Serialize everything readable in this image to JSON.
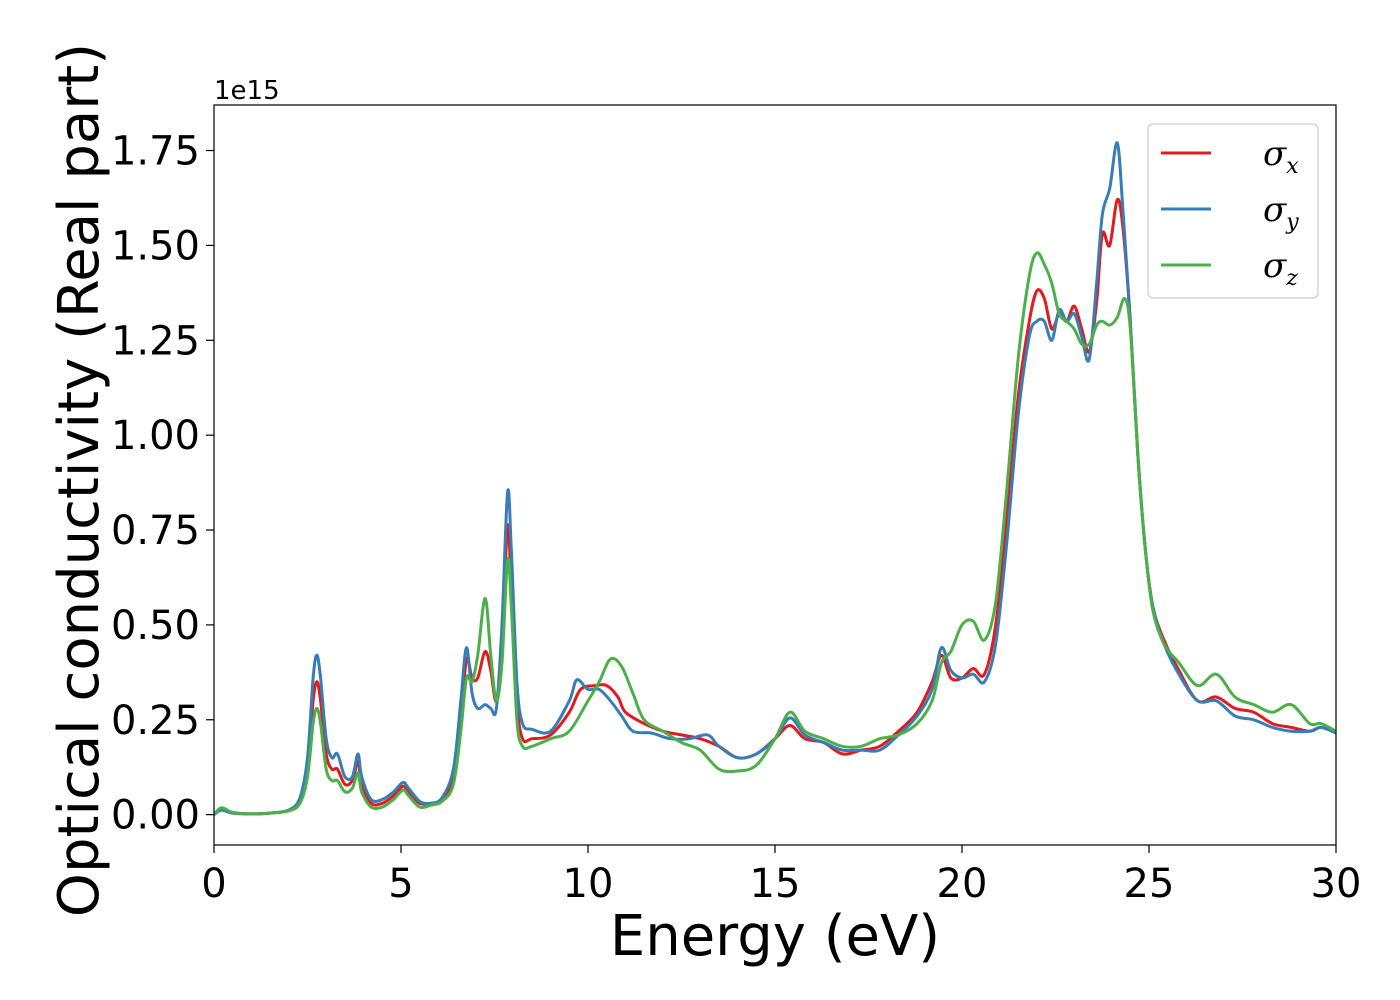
{
  "chart_data": {
    "type": "line",
    "xlabel": "Energy (eV)",
    "ylabel": "Optical conductivity (Real part)",
    "y_offset_label": "1e15",
    "xlim": [
      0,
      30
    ],
    "ylim": [
      -0.08,
      1.87
    ],
    "xticks": [
      0,
      5,
      10,
      15,
      20,
      25,
      30
    ],
    "xtick_labels": [
      "0",
      "5",
      "10",
      "15",
      "20",
      "25",
      "30"
    ],
    "yticks": [
      0,
      0.25,
      0.5,
      0.75,
      1.0,
      1.25,
      1.5,
      1.75
    ],
    "ytick_labels": [
      "0.00",
      "0.25",
      "0.50",
      "0.75",
      "1.00",
      "1.25",
      "1.50",
      "1.75"
    ],
    "grid": false,
    "legend_position": "top-right",
    "series": [
      {
        "name": "σx",
        "legend_base": "σ",
        "legend_sub": "x",
        "color": "#e41a1c",
        "points": [
          [
            0,
            0
          ],
          [
            0.2,
            0.015
          ],
          [
            0.5,
            0.005
          ],
          [
            1,
            0.002
          ],
          [
            1.5,
            0.004
          ],
          [
            2,
            0.012
          ],
          [
            2.3,
            0.04
          ],
          [
            2.5,
            0.12
          ],
          [
            2.65,
            0.3
          ],
          [
            2.75,
            0.35
          ],
          [
            2.85,
            0.3
          ],
          [
            3.0,
            0.16
          ],
          [
            3.15,
            0.12
          ],
          [
            3.3,
            0.12
          ],
          [
            3.5,
            0.08
          ],
          [
            3.7,
            0.09
          ],
          [
            3.85,
            0.14
          ],
          [
            3.95,
            0.08
          ],
          [
            4.2,
            0.03
          ],
          [
            4.5,
            0.03
          ],
          [
            4.8,
            0.05
          ],
          [
            5.05,
            0.075
          ],
          [
            5.2,
            0.06
          ],
          [
            5.5,
            0.03
          ],
          [
            5.8,
            0.03
          ],
          [
            6.1,
            0.04
          ],
          [
            6.4,
            0.1
          ],
          [
            6.6,
            0.25
          ],
          [
            6.75,
            0.41
          ],
          [
            6.9,
            0.36
          ],
          [
            7.05,
            0.36
          ],
          [
            7.25,
            0.43
          ],
          [
            7.4,
            0.38
          ],
          [
            7.55,
            0.3
          ],
          [
            7.7,
            0.45
          ],
          [
            7.85,
            0.76
          ],
          [
            7.95,
            0.6
          ],
          [
            8.1,
            0.3
          ],
          [
            8.25,
            0.2
          ],
          [
            8.5,
            0.2
          ],
          [
            9.0,
            0.21
          ],
          [
            9.5,
            0.27
          ],
          [
            9.8,
            0.33
          ],
          [
            10.2,
            0.34
          ],
          [
            10.5,
            0.34
          ],
          [
            10.8,
            0.31
          ],
          [
            11.0,
            0.27
          ],
          [
            11.5,
            0.24
          ],
          [
            12.0,
            0.22
          ],
          [
            12.5,
            0.21
          ],
          [
            13.0,
            0.2
          ],
          [
            13.5,
            0.18
          ],
          [
            14.0,
            0.15
          ],
          [
            14.5,
            0.16
          ],
          [
            15.0,
            0.2
          ],
          [
            15.4,
            0.235
          ],
          [
            15.8,
            0.2
          ],
          [
            16.3,
            0.19
          ],
          [
            16.8,
            0.16
          ],
          [
            17.3,
            0.17
          ],
          [
            17.8,
            0.18
          ],
          [
            18.3,
            0.22
          ],
          [
            18.8,
            0.27
          ],
          [
            19.2,
            0.35
          ],
          [
            19.45,
            0.42
          ],
          [
            19.7,
            0.36
          ],
          [
            20.0,
            0.36
          ],
          [
            20.3,
            0.385
          ],
          [
            20.6,
            0.37
          ],
          [
            20.9,
            0.5
          ],
          [
            21.2,
            0.78
          ],
          [
            21.5,
            1.1
          ],
          [
            21.8,
            1.3
          ],
          [
            22.0,
            1.38
          ],
          [
            22.2,
            1.36
          ],
          [
            22.4,
            1.28
          ],
          [
            22.6,
            1.32
          ],
          [
            22.8,
            1.3
          ],
          [
            23.0,
            1.34
          ],
          [
            23.2,
            1.28
          ],
          [
            23.4,
            1.22
          ],
          [
            23.6,
            1.35
          ],
          [
            23.75,
            1.53
          ],
          [
            23.95,
            1.5
          ],
          [
            24.15,
            1.62
          ],
          [
            24.3,
            1.55
          ],
          [
            24.5,
            1.3
          ],
          [
            24.7,
            0.95
          ],
          [
            24.9,
            0.7
          ],
          [
            25.1,
            0.55
          ],
          [
            25.4,
            0.46
          ],
          [
            25.8,
            0.38
          ],
          [
            26.3,
            0.3
          ],
          [
            26.8,
            0.31
          ],
          [
            27.3,
            0.28
          ],
          [
            27.8,
            0.27
          ],
          [
            28.3,
            0.24
          ],
          [
            28.8,
            0.23
          ],
          [
            29.3,
            0.22
          ],
          [
            29.6,
            0.23
          ],
          [
            30,
            0.22
          ]
        ]
      },
      {
        "name": "σy",
        "legend_base": "σ",
        "legend_sub": "y",
        "color": "#377eb8",
        "points": [
          [
            0,
            0
          ],
          [
            0.2,
            0.012
          ],
          [
            0.5,
            0.004
          ],
          [
            1,
            0.002
          ],
          [
            1.5,
            0.004
          ],
          [
            2,
            0.012
          ],
          [
            2.3,
            0.045
          ],
          [
            2.5,
            0.15
          ],
          [
            2.65,
            0.36
          ],
          [
            2.75,
            0.42
          ],
          [
            2.85,
            0.36
          ],
          [
            3.0,
            0.2
          ],
          [
            3.15,
            0.15
          ],
          [
            3.3,
            0.16
          ],
          [
            3.5,
            0.1
          ],
          [
            3.7,
            0.1
          ],
          [
            3.85,
            0.16
          ],
          [
            3.95,
            0.1
          ],
          [
            4.2,
            0.04
          ],
          [
            4.5,
            0.04
          ],
          [
            4.8,
            0.06
          ],
          [
            5.05,
            0.085
          ],
          [
            5.2,
            0.07
          ],
          [
            5.5,
            0.035
          ],
          [
            5.8,
            0.03
          ],
          [
            6.1,
            0.045
          ],
          [
            6.4,
            0.12
          ],
          [
            6.6,
            0.3
          ],
          [
            6.75,
            0.44
          ],
          [
            6.9,
            0.32
          ],
          [
            7.05,
            0.28
          ],
          [
            7.25,
            0.29
          ],
          [
            7.4,
            0.28
          ],
          [
            7.55,
            0.28
          ],
          [
            7.7,
            0.5
          ],
          [
            7.85,
            0.85
          ],
          [
            7.95,
            0.7
          ],
          [
            8.1,
            0.35
          ],
          [
            8.25,
            0.24
          ],
          [
            8.5,
            0.225
          ],
          [
            9.0,
            0.22
          ],
          [
            9.5,
            0.3
          ],
          [
            9.7,
            0.355
          ],
          [
            10.0,
            0.33
          ],
          [
            10.3,
            0.33
          ],
          [
            10.6,
            0.3
          ],
          [
            10.9,
            0.26
          ],
          [
            11.2,
            0.22
          ],
          [
            11.7,
            0.215
          ],
          [
            12.2,
            0.2
          ],
          [
            12.7,
            0.2
          ],
          [
            13.2,
            0.21
          ],
          [
            13.5,
            0.18
          ],
          [
            14.0,
            0.15
          ],
          [
            14.5,
            0.16
          ],
          [
            15.0,
            0.2
          ],
          [
            15.4,
            0.255
          ],
          [
            15.8,
            0.21
          ],
          [
            16.3,
            0.19
          ],
          [
            16.8,
            0.17
          ],
          [
            17.3,
            0.17
          ],
          [
            17.8,
            0.17
          ],
          [
            18.3,
            0.21
          ],
          [
            18.8,
            0.26
          ],
          [
            19.2,
            0.33
          ],
          [
            19.45,
            0.44
          ],
          [
            19.7,
            0.38
          ],
          [
            20.0,
            0.36
          ],
          [
            20.3,
            0.37
          ],
          [
            20.6,
            0.35
          ],
          [
            20.9,
            0.45
          ],
          [
            21.2,
            0.72
          ],
          [
            21.5,
            1.05
          ],
          [
            21.8,
            1.26
          ],
          [
            22.0,
            1.3
          ],
          [
            22.2,
            1.3
          ],
          [
            22.4,
            1.25
          ],
          [
            22.6,
            1.33
          ],
          [
            22.8,
            1.3
          ],
          [
            23.0,
            1.32
          ],
          [
            23.2,
            1.26
          ],
          [
            23.4,
            1.2
          ],
          [
            23.6,
            1.4
          ],
          [
            23.75,
            1.58
          ],
          [
            23.95,
            1.65
          ],
          [
            24.15,
            1.77
          ],
          [
            24.3,
            1.6
          ],
          [
            24.5,
            1.3
          ],
          [
            24.7,
            0.95
          ],
          [
            24.9,
            0.7
          ],
          [
            25.1,
            0.55
          ],
          [
            25.4,
            0.45
          ],
          [
            25.8,
            0.37
          ],
          [
            26.3,
            0.3
          ],
          [
            26.8,
            0.3
          ],
          [
            27.3,
            0.26
          ],
          [
            27.8,
            0.25
          ],
          [
            28.3,
            0.23
          ],
          [
            28.8,
            0.22
          ],
          [
            29.3,
            0.22
          ],
          [
            29.6,
            0.23
          ],
          [
            30,
            0.215
          ]
        ]
      },
      {
        "name": "σz",
        "legend_base": "σ",
        "legend_sub": "z",
        "color": "#4daf4a",
        "points": [
          [
            0,
            0
          ],
          [
            0.2,
            0.018
          ],
          [
            0.5,
            0.006
          ],
          [
            1,
            0.002
          ],
          [
            1.5,
            0.004
          ],
          [
            2,
            0.01
          ],
          [
            2.3,
            0.03
          ],
          [
            2.5,
            0.1
          ],
          [
            2.65,
            0.24
          ],
          [
            2.75,
            0.28
          ],
          [
            2.85,
            0.24
          ],
          [
            3.0,
            0.12
          ],
          [
            3.15,
            0.09
          ],
          [
            3.3,
            0.09
          ],
          [
            3.5,
            0.06
          ],
          [
            3.7,
            0.07
          ],
          [
            3.85,
            0.11
          ],
          [
            3.95,
            0.06
          ],
          [
            4.2,
            0.02
          ],
          [
            4.5,
            0.02
          ],
          [
            4.8,
            0.04
          ],
          [
            5.05,
            0.065
          ],
          [
            5.2,
            0.05
          ],
          [
            5.5,
            0.02
          ],
          [
            5.8,
            0.025
          ],
          [
            6.1,
            0.035
          ],
          [
            6.4,
            0.08
          ],
          [
            6.6,
            0.22
          ],
          [
            6.75,
            0.36
          ],
          [
            6.9,
            0.35
          ],
          [
            7.05,
            0.42
          ],
          [
            7.25,
            0.57
          ],
          [
            7.4,
            0.42
          ],
          [
            7.55,
            0.3
          ],
          [
            7.7,
            0.4
          ],
          [
            7.85,
            0.67
          ],
          [
            7.95,
            0.55
          ],
          [
            8.1,
            0.25
          ],
          [
            8.25,
            0.18
          ],
          [
            8.5,
            0.18
          ],
          [
            9.0,
            0.2
          ],
          [
            9.5,
            0.22
          ],
          [
            10.0,
            0.3
          ],
          [
            10.3,
            0.35
          ],
          [
            10.6,
            0.41
          ],
          [
            10.9,
            0.39
          ],
          [
            11.2,
            0.32
          ],
          [
            11.5,
            0.25
          ],
          [
            12.0,
            0.22
          ],
          [
            12.5,
            0.19
          ],
          [
            13.0,
            0.17
          ],
          [
            13.5,
            0.12
          ],
          [
            14.0,
            0.115
          ],
          [
            14.5,
            0.13
          ],
          [
            15.0,
            0.2
          ],
          [
            15.4,
            0.27
          ],
          [
            15.8,
            0.22
          ],
          [
            16.3,
            0.2
          ],
          [
            16.8,
            0.18
          ],
          [
            17.3,
            0.18
          ],
          [
            17.8,
            0.2
          ],
          [
            18.3,
            0.21
          ],
          [
            18.8,
            0.24
          ],
          [
            19.2,
            0.3
          ],
          [
            19.45,
            0.4
          ],
          [
            19.7,
            0.43
          ],
          [
            20.0,
            0.5
          ],
          [
            20.3,
            0.51
          ],
          [
            20.6,
            0.46
          ],
          [
            20.9,
            0.56
          ],
          [
            21.2,
            0.86
          ],
          [
            21.5,
            1.2
          ],
          [
            21.8,
            1.42
          ],
          [
            22.0,
            1.48
          ],
          [
            22.2,
            1.45
          ],
          [
            22.4,
            1.4
          ],
          [
            22.6,
            1.32
          ],
          [
            22.8,
            1.3
          ],
          [
            23.0,
            1.28
          ],
          [
            23.2,
            1.24
          ],
          [
            23.4,
            1.24
          ],
          [
            23.6,
            1.29
          ],
          [
            23.75,
            1.3
          ],
          [
            23.95,
            1.29
          ],
          [
            24.15,
            1.31
          ],
          [
            24.35,
            1.36
          ],
          [
            24.5,
            1.28
          ],
          [
            24.7,
            0.95
          ],
          [
            24.9,
            0.7
          ],
          [
            25.1,
            0.54
          ],
          [
            25.4,
            0.45
          ],
          [
            25.8,
            0.4
          ],
          [
            26.3,
            0.34
          ],
          [
            26.8,
            0.37
          ],
          [
            27.3,
            0.31
          ],
          [
            27.8,
            0.29
          ],
          [
            28.3,
            0.27
          ],
          [
            28.8,
            0.29
          ],
          [
            29.3,
            0.24
          ],
          [
            29.6,
            0.24
          ],
          [
            30,
            0.22
          ]
        ]
      }
    ]
  }
}
